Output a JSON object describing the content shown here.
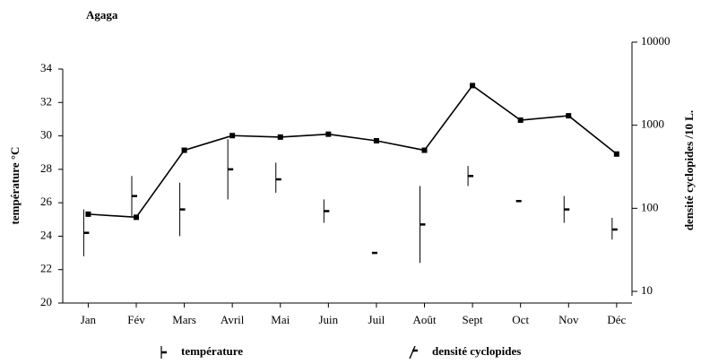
{
  "chart_data": {
    "type": "rangeline",
    "title": "Agaga",
    "ylabel": "température °C",
    "y2label": "densité cyclopides /10 L.",
    "categories": [
      "Jan",
      "Fév",
      "Mars",
      "Avril",
      "Mai",
      "Juin",
      "Juil",
      "Août",
      "Sept",
      "Oct",
      "Nov",
      "Déc"
    ],
    "series": [
      {
        "name": "température",
        "color": "#000000",
        "min": [
          22.8,
          25.2,
          24,
          26.2,
          26.6,
          24.8,
          23,
          22.4,
          27,
          26.1,
          24.8,
          23.8
        ],
        "max": [
          25.6,
          27.6,
          27.2,
          29.8,
          28.4,
          26.2,
          23,
          27,
          28.2,
          26.1,
          26.4,
          25.1
        ],
        "values": [
          24.2,
          26.4,
          25.6,
          28,
          27.4,
          25.5,
          23,
          24.7,
          27.6,
          26.1,
          25.6,
          24.4
        ]
      },
      {
        "name": "densité cyclopides",
        "color": "#000000",
        "axis": "y2",
        "values": [
          85,
          78,
          500,
          750,
          720,
          780,
          650,
          500,
          3000,
          1150,
          1300,
          450
        ]
      }
    ],
    "ylim": [
      20,
      34
    ],
    "yticks": [
      20,
      22,
      24,
      26,
      28,
      30,
      32,
      34
    ],
    "y2lim": [
      10,
      10000
    ],
    "y2ticks": [
      10,
      100,
      1000,
      10000
    ],
    "y2log": true
  }
}
